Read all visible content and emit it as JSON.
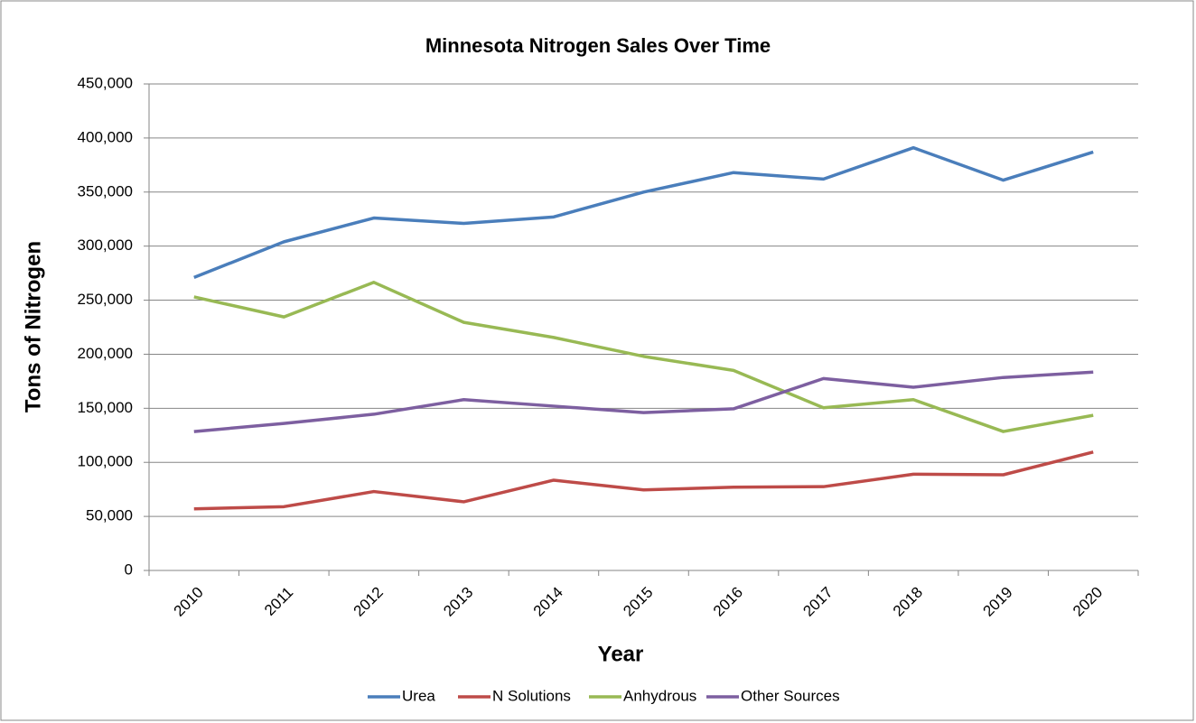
{
  "chart_data": {
    "type": "line",
    "title": "Minnesota Nitrogen Sales Over Time",
    "x_label": "Year",
    "y_label": "Tons of Nitrogen",
    "categories": [
      "2010",
      "2011",
      "2012",
      "2013",
      "2014",
      "2015",
      "2016",
      "2017",
      "2018",
      "2019",
      "2020"
    ],
    "series": [
      {
        "name": "Urea",
        "color": "#4a7ebb",
        "values": [
          271000,
          304000,
          326000,
          321000,
          327000,
          350000,
          368000,
          362000,
          391000,
          361000,
          387000
        ]
      },
      {
        "name": "N Solutions",
        "color": "#be4b48",
        "values": [
          57000,
          59000,
          73000,
          63500,
          83500,
          74500,
          77000,
          77500,
          89000,
          88500,
          109500
        ]
      },
      {
        "name": "Anhydrous",
        "color": "#98b954",
        "values": [
          253000,
          234500,
          266500,
          229500,
          215500,
          198000,
          185000,
          150500,
          158000,
          128500,
          143500
        ]
      },
      {
        "name": "Other Sources",
        "color": "#7d5fa0",
        "values": [
          128500,
          136000,
          144500,
          158000,
          152000,
          146000,
          149500,
          177500,
          169500,
          178500,
          183500
        ]
      }
    ],
    "ylim": [
      0,
      450000
    ],
    "yticks": [
      0,
      {
        "value": 50000,
        "label": "50,000"
      },
      {
        "value": 100000,
        "label": "100,000"
      },
      {
        "value": 150000,
        "label": "150,000"
      },
      {
        "value": 200000,
        "label": "200,000"
      },
      {
        "value": 250000,
        "label": "250,000"
      },
      {
        "value": 300000,
        "label": "300,000"
      },
      {
        "value": 350000,
        "label": "350,000"
      },
      {
        "value": 400000,
        "label": "400,000"
      },
      {
        "value": 450000,
        "label": "450,000"
      }
    ],
    "grid": true,
    "legend": "bottom"
  }
}
